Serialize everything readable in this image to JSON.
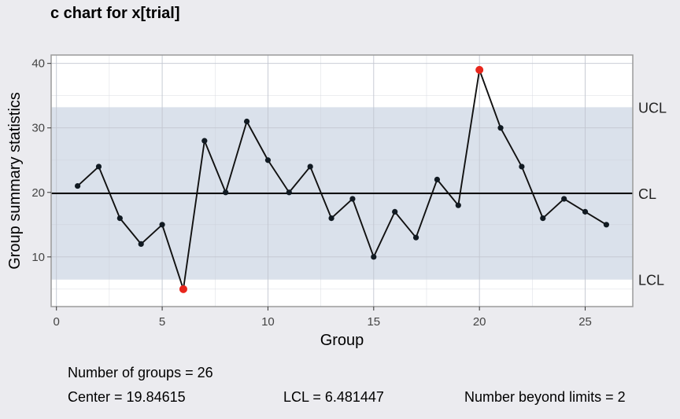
{
  "chart_data": {
    "type": "line",
    "title": "c chart for x[trial]",
    "xlabel": "Group",
    "ylabel": "Group summary statistics",
    "xlim": [
      -0.25,
      27.25
    ],
    "ylim": [
      2.3,
      41.3
    ],
    "x_ticks": [
      0,
      5,
      10,
      15,
      20,
      25
    ],
    "y_ticks": [
      10,
      20,
      30,
      40
    ],
    "grid": true,
    "x": [
      1,
      2,
      3,
      4,
      5,
      6,
      7,
      8,
      9,
      10,
      11,
      12,
      13,
      14,
      15,
      16,
      17,
      18,
      19,
      20,
      21,
      22,
      23,
      24,
      25,
      26
    ],
    "values": [
      21,
      24,
      16,
      12,
      15,
      5,
      28,
      20,
      31,
      25,
      20,
      24,
      16,
      19,
      10,
      17,
      13,
      22,
      18,
      39,
      30,
      24,
      16,
      19,
      17,
      15
    ],
    "center": 19.84615,
    "lcl": 6.481447,
    "ucl": 33.21086,
    "limit_labels": {
      "ucl": "UCL",
      "cl": "CL",
      "lcl": "LCL"
    },
    "beyond_limit_groups": [
      6,
      20
    ]
  },
  "colors": {
    "background": "#ebebef",
    "plot_background": "#ffffff",
    "limit_band": "#dae1eb",
    "line": "#111111",
    "point": "#111a22",
    "violation": "#e8261c"
  },
  "stats": {
    "groups": "Number of groups = 26",
    "center": "Center = 19.84615",
    "lcl": "LCL = 6.481447",
    "beyond": "Number beyond limits = 2"
  }
}
